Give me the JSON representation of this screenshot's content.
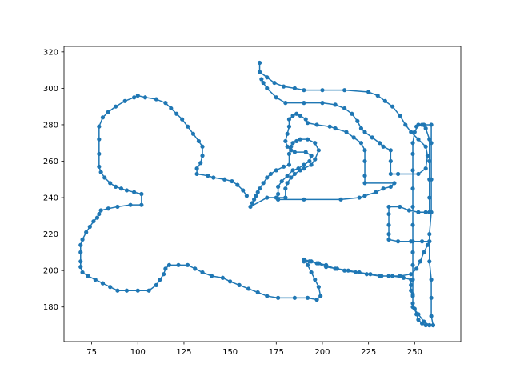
{
  "chart_data": {
    "type": "scatter",
    "title": "",
    "xlabel": "",
    "ylabel": "",
    "xlim": [
      60,
      275
    ],
    "ylim": [
      161,
      323
    ],
    "xticks": [
      75,
      100,
      125,
      150,
      175,
      200,
      225,
      250
    ],
    "yticks": [
      180,
      200,
      220,
      240,
      260,
      280,
      300,
      320
    ],
    "grid": false,
    "legend": "none",
    "series": [
      {
        "color": "#1f77b4",
        "marker": "circle",
        "connected": true,
        "paths": [
          [
            [
              166,
              314
            ],
            [
              166,
              309
            ],
            [
              170,
              306
            ],
            [
              174,
              303
            ],
            [
              179,
              301
            ],
            [
              185,
              300
            ],
            [
              190,
              299
            ],
            [
              200,
              299
            ],
            [
              212,
              299
            ],
            [
              225,
              298
            ],
            [
              230,
              296
            ],
            [
              234,
              293
            ],
            [
              238,
              290
            ],
            [
              242,
              285
            ],
            [
              245,
              280
            ],
            [
              248,
              276
            ],
            [
              252,
              272
            ],
            [
              256,
              268
            ],
            [
              257,
              263
            ],
            [
              256,
              256
            ],
            [
              252,
              253
            ],
            [
              241,
              253
            ],
            [
              237,
              253
            ],
            [
              237,
              260
            ],
            [
              237,
              266
            ],
            [
              233,
              268
            ],
            [
              231,
              270
            ],
            [
              227,
              273
            ],
            [
              223,
              276
            ],
            [
              221,
              278
            ],
            [
              219,
              282
            ],
            [
              216,
              286
            ],
            [
              212,
              289
            ],
            [
              207,
              291
            ],
            [
              200,
              292
            ],
            [
              190,
              292
            ],
            [
              180,
              292
            ],
            [
              175,
              295
            ],
            [
              170,
              300
            ],
            [
              168,
              303
            ],
            [
              167,
              305
            ]
          ],
          [
            [
              180,
              240
            ],
            [
              180,
              245
            ],
            [
              181,
              248
            ],
            [
              183,
              251
            ],
            [
              185,
              253
            ],
            [
              188,
              255
            ],
            [
              190,
              256
            ],
            [
              194,
              258
            ],
            [
              196,
              261
            ],
            [
              198,
              266
            ],
            [
              196,
              270
            ],
            [
              192,
              272
            ],
            [
              188,
              272
            ],
            [
              186,
              271
            ],
            [
              184,
              270
            ],
            [
              183,
              268
            ],
            [
              182,
              264
            ],
            [
              182,
              258
            ],
            [
              179,
              257
            ],
            [
              175,
              255
            ],
            [
              172,
              253
            ],
            [
              170,
              251
            ],
            [
              168,
              248
            ],
            [
              166,
              245
            ],
            [
              165,
              243
            ],
            [
              164,
              241
            ],
            [
              163,
              239
            ],
            [
              162,
              237
            ],
            [
              161,
              235
            ],
            [
              170,
              240
            ],
            [
              175,
              240
            ],
            [
              180,
              240
            ]
          ],
          [
            [
              176,
              239
            ],
            [
              190,
              239
            ],
            [
              210,
              239
            ],
            [
              220,
              240
            ],
            [
              223,
              241
            ],
            [
              229,
              243
            ],
            [
              233,
              245
            ],
            [
              237,
              246
            ],
            [
              239,
              248
            ],
            [
              223,
              248
            ],
            [
              223,
              252
            ],
            [
              223,
              260
            ],
            [
              223,
              266
            ],
            [
              221,
              270
            ],
            [
              217,
              273
            ],
            [
              213,
              276
            ],
            [
              207,
              278
            ],
            [
              204,
              279
            ],
            [
              197,
              280
            ],
            [
              192,
              281
            ],
            [
              191,
              283
            ],
            [
              188,
              285
            ],
            [
              186,
              286
            ],
            [
              184,
              285
            ],
            [
              182,
              283
            ],
            [
              182,
              279
            ],
            [
              181,
              275
            ],
            [
              180,
              271
            ],
            [
              181,
              268
            ],
            [
              183,
              266
            ],
            [
              185,
              265
            ],
            [
              191,
              265
            ],
            [
              194,
              263
            ],
            [
              193,
              260
            ],
            [
              190,
              258
            ],
            [
              187,
              256
            ],
            [
              184,
              255
            ],
            [
              181,
              252
            ],
            [
              178,
              249
            ],
            [
              176,
              246
            ],
            [
              176,
              242
            ],
            [
              176,
              239
            ]
          ],
          [
            [
              159,
              241
            ],
            [
              157,
              244
            ],
            [
              154,
              247
            ],
            [
              151,
              249
            ],
            [
              147,
              250
            ],
            [
              141,
              251
            ],
            [
              138,
              252
            ],
            [
              132,
              253
            ],
            [
              132,
              256
            ],
            [
              134,
              259
            ],
            [
              135,
              263
            ],
            [
              135,
              268
            ],
            [
              133,
              271
            ],
            [
              130,
              275
            ],
            [
              127,
              279
            ],
            [
              124,
              283
            ],
            [
              121,
              286
            ],
            [
              118,
              289
            ],
            [
              115,
              292
            ],
            [
              110,
              294
            ],
            [
              104,
              295
            ],
            [
              100,
              296
            ],
            [
              98,
              295
            ],
            [
              93,
              293
            ],
            [
              88,
              290
            ],
            [
              84,
              287
            ],
            [
              81,
              284
            ],
            [
              79,
              279
            ],
            [
              79,
              272
            ],
            [
              79,
              264
            ],
            [
              79,
              257
            ],
            [
              80,
              254
            ],
            [
              82,
              251
            ],
            [
              85,
              248
            ],
            [
              88,
              246
            ],
            [
              91,
              245
            ],
            [
              94,
              244
            ],
            [
              98,
              243
            ],
            [
              102,
              242
            ],
            [
              102,
              236
            ],
            [
              96,
              236
            ],
            [
              89,
              235
            ],
            [
              84,
              234
            ],
            [
              80,
              233
            ],
            [
              79,
              231
            ],
            [
              78,
              229
            ],
            [
              76,
              227
            ],
            [
              74,
              224
            ],
            [
              72,
              221
            ],
            [
              70,
              217
            ],
            [
              69,
              214
            ],
            [
              69,
              210
            ],
            [
              69,
              205
            ],
            [
              69,
              202
            ],
            [
              70,
              199
            ],
            [
              73,
              197
            ],
            [
              77,
              195
            ],
            [
              81,
              193
            ],
            [
              85,
              191
            ],
            [
              89,
              189
            ],
            [
              94,
              189
            ],
            [
              100,
              189
            ],
            [
              106,
              189
            ],
            [
              110,
              192
            ],
            [
              112,
              195
            ],
            [
              114,
              198
            ],
            [
              115,
              201
            ],
            [
              117,
              203
            ],
            [
              122,
              203
            ],
            [
              127,
              203
            ],
            [
              131,
              201
            ],
            [
              135,
              199
            ],
            [
              140,
              197
            ],
            [
              146,
              196
            ],
            [
              150,
              194
            ],
            [
              155,
              192
            ],
            [
              160,
              190
            ],
            [
              165,
              188
            ],
            [
              170,
              186
            ],
            [
              176,
              185
            ],
            [
              185,
              185
            ],
            [
              192,
              185
            ],
            [
              197,
              184
            ],
            [
              199,
              186
            ],
            [
              198,
              191
            ],
            [
              196,
              195
            ],
            [
              194,
              199
            ],
            [
              192,
              203
            ],
            [
              190,
              206
            ],
            [
              194,
              205
            ],
            [
              198,
              204
            ],
            [
              202,
              203
            ],
            [
              207,
              201
            ],
            [
              212,
              200
            ],
            [
              218,
              199
            ],
            [
              224,
              198
            ],
            [
              231,
              197
            ],
            [
              236,
              197
            ],
            [
              242,
              197
            ],
            [
              248,
              198
            ],
            [
              251,
              201
            ],
            [
              253,
              205
            ],
            [
              255,
              210
            ],
            [
              257,
              214
            ],
            [
              258,
              216
            ],
            [
              254,
              216
            ],
            [
              248,
              216
            ],
            [
              241,
              216
            ],
            [
              236,
              217
            ],
            [
              236,
              220
            ],
            [
              236,
              225
            ],
            [
              236,
              231
            ],
            [
              236,
              235
            ],
            [
              242,
              235
            ],
            [
              247,
              233
            ],
            [
              252,
              232
            ],
            [
              256,
              232
            ],
            [
              258,
              232
            ],
            [
              258,
              240
            ],
            [
              258,
              250
            ],
            [
              258,
              260
            ],
            [
              258,
              272
            ],
            [
              256,
              278
            ],
            [
              254,
              280
            ],
            [
              252,
              280
            ],
            [
              250,
              276
            ],
            [
              249,
              270
            ],
            [
              249,
              264
            ],
            [
              249,
              255
            ],
            [
              249,
              245
            ],
            [
              249,
              235
            ],
            [
              249,
              225
            ],
            [
              249,
              216
            ],
            [
              249,
              210
            ],
            [
              249,
              203
            ],
            [
              249,
              195
            ],
            [
              249,
              187
            ],
            [
              249,
              180
            ],
            [
              252,
              176
            ],
            [
              255,
              172
            ],
            [
              258,
              170
            ],
            [
              260,
              170
            ],
            [
              258,
              170
            ],
            [
              256,
              170
            ],
            [
              254,
              171
            ],
            [
              252,
              173
            ],
            [
              251,
              176
            ],
            [
              250,
              179
            ],
            [
              249,
              182
            ],
            [
              249,
              186
            ],
            [
              248,
              189
            ],
            [
              248,
              192
            ],
            [
              248,
              195
            ],
            [
              244,
              196
            ],
            [
              238,
              197
            ],
            [
              232,
              197
            ],
            [
              226,
              198
            ],
            [
              220,
              199
            ],
            [
              214,
              200
            ],
            [
              208,
              201
            ],
            [
              202,
              202
            ],
            [
              197,
              204
            ],
            [
              193,
              205
            ],
            [
              190,
              205
            ]
          ],
          [
            [
              251,
              279
            ],
            [
              255,
              280
            ],
            [
              259,
              280
            ],
            [
              259,
              270
            ],
            [
              259,
              250
            ],
            [
              259,
              232
            ],
            [
              258,
              220
            ],
            [
              258,
              216
            ],
            [
              258,
              205
            ],
            [
              259,
              195
            ],
            [
              259,
              185
            ],
            [
              259,
              175
            ],
            [
              260,
              170
            ]
          ]
        ]
      }
    ]
  }
}
